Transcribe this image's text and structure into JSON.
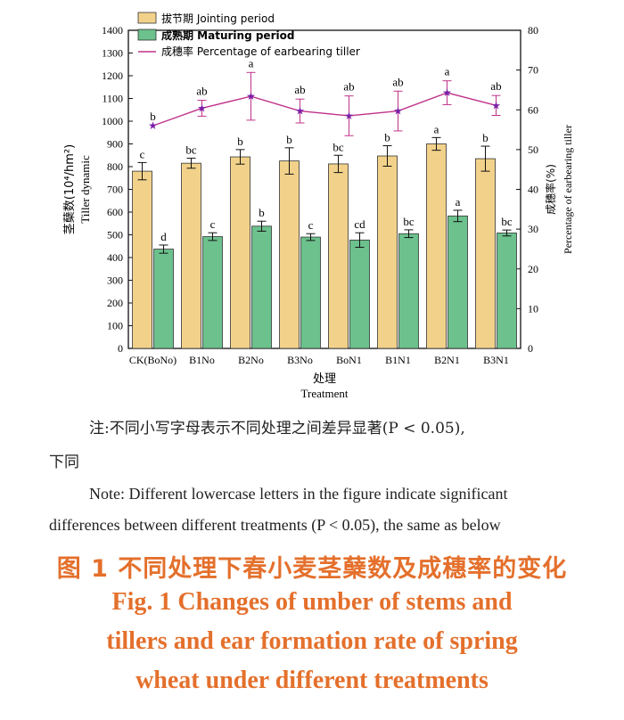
{
  "chart_data": {
    "type": "bar+line",
    "categories": [
      "CK(BoNo)",
      "B1No",
      "B2No",
      "B3No",
      "BoN1",
      "B1N1",
      "B2N1",
      "B3N1"
    ],
    "series": [
      {
        "name": "拔节期 Jointing period",
        "type": "bar",
        "axis": "left",
        "color": "#f2d28b",
        "values": [
          780,
          815,
          843,
          825,
          812,
          847,
          900,
          835
        ],
        "errors": [
          38,
          22,
          32,
          58,
          38,
          45,
          28,
          55
        ],
        "letters": [
          "c",
          "bc",
          "b",
          "b",
          "bc",
          "b",
          "a",
          "b"
        ]
      },
      {
        "name": "成熟期 Maturing period",
        "type": "bar",
        "axis": "left",
        "color": "#6cc18d",
        "values": [
          437,
          492,
          538,
          490,
          477,
          505,
          583,
          508
        ],
        "errors": [
          18,
          17,
          22,
          15,
          32,
          17,
          25,
          13
        ],
        "letters": [
          "d",
          "c",
          "b",
          "c",
          "cd",
          "bc",
          "a",
          "bc"
        ]
      },
      {
        "name": "成穗率 Percentage of earbearing tiller",
        "type": "line",
        "axis": "right",
        "color": "#c0338a",
        "values": [
          56.0,
          60.4,
          63.4,
          59.7,
          58.5,
          59.7,
          64.3,
          61.1
        ],
        "errors": [
          0,
          2.0,
          6.0,
          3.0,
          5.0,
          5.0,
          3.0,
          2.5
        ],
        "letters": [
          "b",
          "ab",
          "a",
          "ab",
          "ab",
          "ab",
          "a",
          "ab"
        ]
      }
    ],
    "ylim_left": [
      0,
      1400
    ],
    "yticks_left": [
      0,
      100,
      200,
      300,
      400,
      500,
      600,
      700,
      800,
      900,
      1000,
      1100,
      1200,
      1300,
      1400
    ],
    "ylim_right": [
      0,
      80
    ],
    "yticks_right": [
      0,
      10,
      20,
      30,
      40,
      50,
      60,
      70,
      80
    ],
    "ylabel_left_cn": "茎蘖数(10⁴/hm²)",
    "ylabel_left_en": "Tiller dynamic",
    "ylabel_right_cn": "成穗率(%)",
    "ylabel_right_en": "Percentage of earbearing tiller",
    "xlabel_cn": "处理",
    "xlabel_en": "Treatment",
    "legend_position": "top-left"
  },
  "notes": {
    "cn_line1": "注:不同小写字母表示不同处理之间差异显著(P < 0.05),",
    "cn_line2": "下同",
    "en_line1": "Note: Different lowercase letters in the figure indicate significant",
    "en_line2": "differences between different treatments (P < 0.05), the same as below"
  },
  "caption": {
    "cn": "图 1   不同处理下春小麦茎蘖数及成穗率的变化",
    "en_line1": "Fig. 1   Changes of umber of stems and",
    "en_line2": "tillers and ear formation rate of spring",
    "en_line3": "wheat under different treatments"
  }
}
